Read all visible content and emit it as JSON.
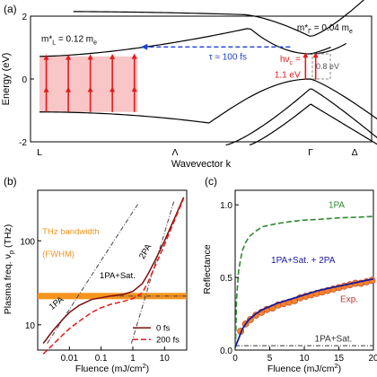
{
  "chart_data": [
    {
      "panel": "(a)",
      "type": "line",
      "xlabel": "Wavevector k",
      "ylabel": "Energy (eV)",
      "ylim": [
        -2,
        2
      ],
      "yticks": [
        -2,
        0,
        2
      ],
      "xticks": [
        "L",
        "Λ",
        "Γ",
        "Δ"
      ],
      "annotations": {
        "mass_L": "m*",
        "mass_L_sub": "L",
        "mass_L_val": " = 0.12 m",
        "mass_L_e": "e",
        "mass_G": "m*",
        "mass_G_sub": "Γ",
        "mass_G_val": " = 0.04 m",
        "mass_G_e": "e",
        "tau": "τ ≈ 100 fs",
        "hv1": "hν",
        "hv_sub": "c",
        "hv2": " =",
        "hv3": "1.1 eV",
        "gap": "0.8 eV"
      },
      "colors": {
        "band": "#000000",
        "arrow_red": "#e41a1c",
        "shade": "#f6b3b3",
        "tau_arrow": "#1f3fd6",
        "gap_box": "#888888"
      }
    },
    {
      "panel": "(b)",
      "type": "line",
      "log_x": true,
      "log_y": true,
      "xlabel": "Fluence (mJ/cm",
      "xlabel_sup": "2",
      "xlabel_end": ")",
      "ylabel": "Plasma freq. ν",
      "ylabel_sub": "p",
      "ylabel_end": " (THz)",
      "xlim": [
        0.001,
        50
      ],
      "ylim": [
        5,
        400
      ],
      "xticks": [
        0.01,
        0.1,
        1,
        10
      ],
      "xtick_labels": [
        "0.01",
        "0.1",
        "1",
        "10"
      ],
      "yticks": [
        10,
        100
      ],
      "ytick_labels": [
        "10",
        "100"
      ],
      "band_label": "THz bandwidth",
      "band_label2": "(FWHM)",
      "band_value": 22,
      "line_labels": [
        "1PA",
        "1PA+Sat.",
        "2PA"
      ],
      "series": [
        {
          "name": "0 fs",
          "x": [
            0.0015,
            0.003,
            0.006,
            0.01,
            0.02,
            0.05,
            0.1,
            0.2,
            0.5,
            1,
            2,
            3,
            5,
            10,
            20,
            40
          ],
          "y": [
            6,
            8.5,
            11.5,
            14,
            17,
            20,
            21,
            22,
            23,
            25,
            31,
            40,
            58,
            100,
            180,
            330
          ]
        },
        {
          "name": "200 fs",
          "x": [
            0.0015,
            0.003,
            0.006,
            0.01,
            0.02,
            0.05,
            0.1,
            0.2,
            0.5,
            1,
            2,
            3,
            5,
            10,
            20,
            40
          ],
          "y": [
            4.5,
            5.8,
            7.5,
            9,
            11,
            14,
            16,
            17.5,
            19,
            20.5,
            24,
            32,
            50,
            90,
            170,
            320
          ]
        }
      ],
      "colors": {
        "s0": "#7a0f0f",
        "s1": "#e41a1c",
        "band": "#f7941d",
        "guide": "#444444"
      }
    },
    {
      "panel": "(c)",
      "type": "line",
      "xlabel": "Fluence (mJ/cm",
      "xlabel_sup": "2",
      "xlabel_end": ")",
      "ylabel": "Reflectance",
      "xlim": [
        0,
        20
      ],
      "ylim": [
        0,
        1.1
      ],
      "xticks": [
        0,
        5,
        10,
        15,
        20
      ],
      "yticks": [
        0.0,
        0.5,
        1.0
      ],
      "ytick_labels": [
        "0.0",
        "0.5",
        "1.0"
      ],
      "series": [
        {
          "name": "1PA",
          "x": [
            0.05,
            0.2,
            0.5,
            1,
            1.5,
            2,
            3,
            4,
            5,
            6,
            8,
            10,
            12,
            15,
            18,
            20
          ],
          "y": [
            0.02,
            0.35,
            0.55,
            0.68,
            0.74,
            0.78,
            0.82,
            0.85,
            0.86,
            0.87,
            0.885,
            0.895,
            0.9,
            0.91,
            0.915,
            0.92
          ]
        },
        {
          "name": "1PA+Sat. + 2PA",
          "x": [
            0,
            0.5,
            1,
            1.5,
            2,
            3,
            4,
            5,
            6,
            8,
            10,
            12,
            14,
            16,
            18,
            20
          ],
          "y": [
            0.02,
            0.08,
            0.14,
            0.18,
            0.21,
            0.25,
            0.28,
            0.3,
            0.32,
            0.35,
            0.38,
            0.41,
            0.43,
            0.45,
            0.47,
            0.49
          ]
        },
        {
          "name": "1PA+Sat.",
          "x": [
            0,
            20
          ],
          "y": [
            0.03,
            0.03
          ]
        },
        {
          "name": "Exp.",
          "x": [
            0.8,
            1.5,
            2.2,
            3,
            3.8,
            4.6,
            5.4,
            6.2,
            7,
            7.8,
            8.6,
            9.4,
            10.2,
            11,
            11.8,
            12.6,
            13.4,
            14.2,
            15,
            15.8,
            16.6,
            17.4,
            18.2,
            19,
            19.8
          ],
          "y": [
            0.13,
            0.18,
            0.21,
            0.24,
            0.26,
            0.28,
            0.29,
            0.31,
            0.32,
            0.33,
            0.34,
            0.36,
            0.37,
            0.38,
            0.39,
            0.4,
            0.41,
            0.42,
            0.43,
            0.44,
            0.45,
            0.46,
            0.46,
            0.47,
            0.48
          ]
        }
      ],
      "colors": {
        "s_1pa": "#2e8b2e",
        "s_fit": "#1a1a9e",
        "s_sat": "#333333",
        "s_exp_fill": "#f5832a",
        "s_exp_stroke": "#c0392b"
      }
    }
  ]
}
